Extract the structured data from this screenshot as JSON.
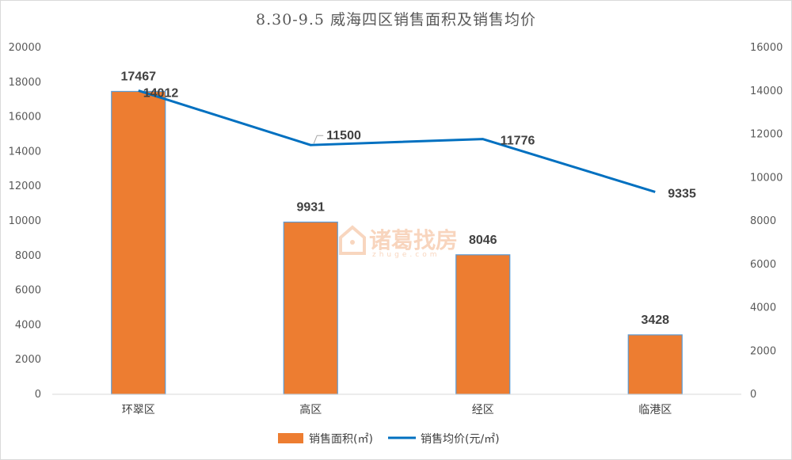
{
  "chart_data": {
    "type": "bar+line",
    "title": "8.30-9.5 威海四区销售面积及销售均价",
    "categories": [
      "环翠区",
      "高区",
      "经区",
      "临港区"
    ],
    "series": [
      {
        "name": "销售面积(㎡)",
        "type": "bar",
        "axis": "left",
        "color": "#ed7d31",
        "values": [
          17467,
          9931,
          8046,
          3428
        ]
      },
      {
        "name": "销售均价(元/㎡)",
        "type": "line",
        "axis": "right",
        "color": "#0070c0",
        "values": [
          14012,
          11500,
          11776,
          9335
        ]
      }
    ],
    "y_left": {
      "range": [
        0,
        20000
      ],
      "ticks": [
        "0",
        "2000",
        "4000",
        "6000",
        "8000",
        "10000",
        "12000",
        "14000",
        "16000",
        "18000",
        "20000"
      ]
    },
    "y_right": {
      "range": [
        0,
        16000
      ],
      "ticks": [
        "0",
        "2000",
        "4000",
        "6000",
        "8000",
        "10000",
        "12000",
        "14000",
        "16000"
      ]
    },
    "grid": false,
    "legend_position": "bottom"
  },
  "watermark": {
    "text": "诸葛找房",
    "subtext": "zhuge.com"
  }
}
